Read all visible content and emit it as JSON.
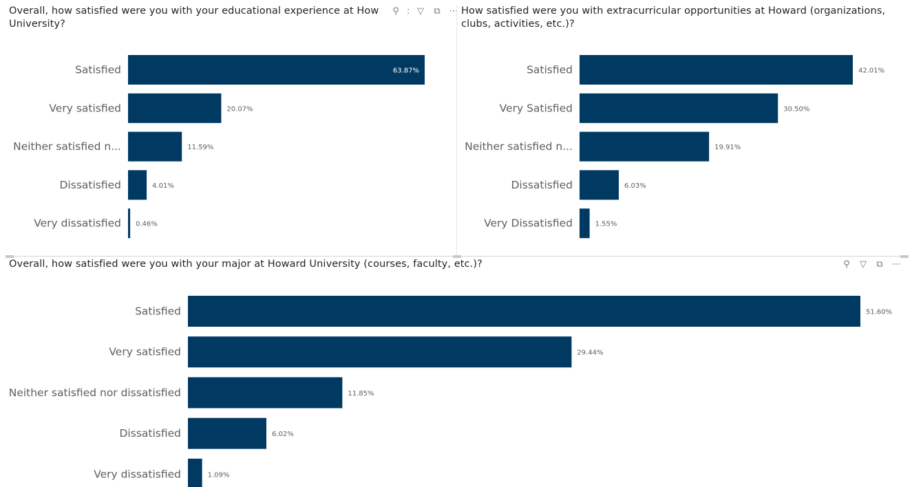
{
  "toolbar": {
    "pin_icon": "pin-icon",
    "filter_icon": "filter-icon",
    "focus_icon": "focus-mode-icon",
    "more_icon": "more-options-icon",
    "pin_glyph": "⚲",
    "filter_glyph": "▽",
    "focus_glyph": "⧉",
    "more_glyph": "⋯",
    "trunc_glyph": ":"
  },
  "colors": {
    "bar": "#003a63",
    "label": "#605e5c",
    "title": "#252423"
  },
  "chart_data": [
    {
      "type": "bar",
      "orientation": "horizontal",
      "title": "Overall, how satisfied were you with your educational experience at How",
      "title_line2": "University?",
      "categories": [
        "Satisfied",
        "Very satisfied",
        "Neither satisfied n...",
        "Dissatisfied",
        "Very dissatisfied"
      ],
      "values": [
        63.87,
        20.07,
        11.59,
        4.01,
        0.46
      ],
      "value_labels": [
        "63.87%",
        "20.07%",
        "11.59%",
        "4.01%",
        "0.46%"
      ],
      "max": 63.87
    },
    {
      "type": "bar",
      "orientation": "horizontal",
      "title": "How satisfied were you with extracurricular opportunities at Howard (organizations,",
      "title_line2": "clubs, activities, etc.)?",
      "categories": [
        "Satisfied",
        "Very Satisfied",
        "Neither satisfied n...",
        "Dissatisfied",
        "Very Dissatisfied"
      ],
      "values": [
        42.01,
        30.5,
        19.91,
        6.03,
        1.55
      ],
      "value_labels": [
        "42.01%",
        "30.50%",
        "19.91%",
        "6.03%",
        "1.55%"
      ],
      "max": 42.01
    },
    {
      "type": "bar",
      "orientation": "horizontal",
      "title": "Overall, how satisfied were you with your major at Howard University (courses, faculty, etc.)?",
      "title_line2": "",
      "categories": [
        "Satisfied",
        "Very satisfied",
        "Neither satisfied nor dissatisfied",
        "Dissatisfied",
        "Very dissatisfied"
      ],
      "values": [
        51.6,
        29.44,
        11.85,
        6.02,
        1.09
      ],
      "value_labels": [
        "51.60%",
        "29.44%",
        "11.85%",
        "6.02%",
        "1.09%"
      ],
      "max": 51.6
    }
  ]
}
